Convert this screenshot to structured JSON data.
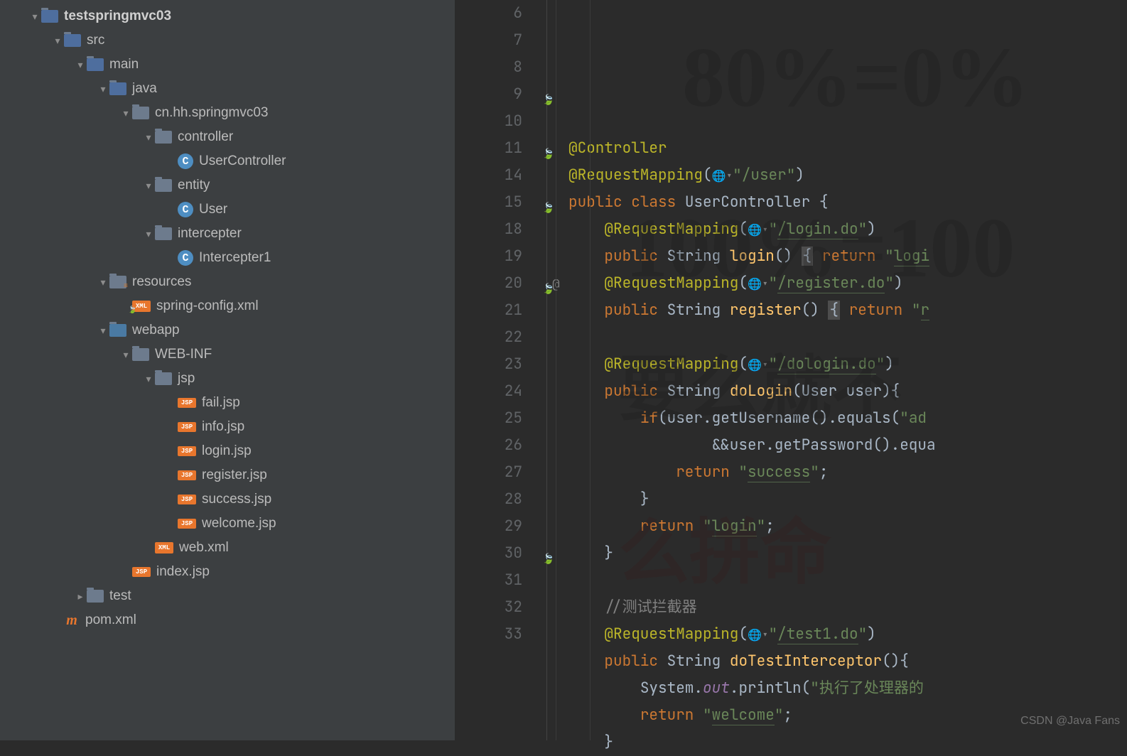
{
  "tree": [
    {
      "d": 40,
      "a": "open",
      "i": "folder",
      "v": "src",
      "lbl": "testspringmvc03",
      "bold": true
    },
    {
      "d": 72,
      "a": "open",
      "i": "folder",
      "v": "src",
      "lbl": "src"
    },
    {
      "d": 104,
      "a": "open",
      "i": "folder",
      "v": "src",
      "lbl": "main"
    },
    {
      "d": 136,
      "a": "open",
      "i": "folder",
      "v": "src",
      "lbl": "java"
    },
    {
      "d": 168,
      "a": "open",
      "i": "folder",
      "lbl": "cn.hh.springmvc03"
    },
    {
      "d": 200,
      "a": "open",
      "i": "folder",
      "lbl": "controller"
    },
    {
      "d": 232,
      "a": "none",
      "i": "class",
      "it": "C",
      "lbl": "UserController"
    },
    {
      "d": 200,
      "a": "open",
      "i": "folder",
      "lbl": "entity"
    },
    {
      "d": 232,
      "a": "none",
      "i": "class",
      "it": "C",
      "lbl": "User"
    },
    {
      "d": 200,
      "a": "open",
      "i": "folder",
      "lbl": "intercepter"
    },
    {
      "d": 232,
      "a": "none",
      "i": "class",
      "it": "C",
      "lbl": "Intercepter1"
    },
    {
      "d": 136,
      "a": "open",
      "i": "folder",
      "v": "res",
      "lbl": "resources"
    },
    {
      "d": 168,
      "a": "none",
      "i": "xml",
      "v": "spring",
      "it": "XML",
      "lbl": "spring-config.xml"
    },
    {
      "d": 136,
      "a": "open",
      "i": "folder",
      "v": "web",
      "lbl": "webapp"
    },
    {
      "d": 168,
      "a": "open",
      "i": "folder",
      "lbl": "WEB-INF"
    },
    {
      "d": 200,
      "a": "open",
      "i": "folder",
      "lbl": "jsp"
    },
    {
      "d": 232,
      "a": "none",
      "i": "jsp",
      "it": "JSP",
      "lbl": "fail.jsp"
    },
    {
      "d": 232,
      "a": "none",
      "i": "jsp",
      "it": "JSP",
      "lbl": "info.jsp"
    },
    {
      "d": 232,
      "a": "none",
      "i": "jsp",
      "it": "JSP",
      "lbl": "login.jsp"
    },
    {
      "d": 232,
      "a": "none",
      "i": "jsp",
      "it": "JSP",
      "lbl": "register.jsp"
    },
    {
      "d": 232,
      "a": "none",
      "i": "jsp",
      "it": "JSP",
      "lbl": "success.jsp"
    },
    {
      "d": 232,
      "a": "none",
      "i": "jsp",
      "it": "JSP",
      "lbl": "welcome.jsp"
    },
    {
      "d": 200,
      "a": "none",
      "i": "xml",
      "it": "XML",
      "lbl": "web.xml"
    },
    {
      "d": 168,
      "a": "none",
      "i": "jsp",
      "it": "JSP",
      "lbl": "index.jsp"
    },
    {
      "d": 104,
      "a": "closed",
      "i": "folder",
      "lbl": "test"
    },
    {
      "d": 72,
      "a": "none",
      "i": "pom",
      "it": "m",
      "lbl": "pom.xml"
    }
  ],
  "lines": [
    6,
    7,
    8,
    9,
    10,
    11,
    14,
    15,
    18,
    19,
    20,
    21,
    22,
    23,
    24,
    25,
    26,
    27,
    28,
    29,
    30,
    31,
    32,
    33
  ],
  "gutterIcons": {
    "3": "spring",
    "5": "spring",
    "7": "spring",
    "10": "spring",
    "10at": true,
    "20": "spring"
  },
  "code": [
    {
      "n": 6,
      "html": ""
    },
    {
      "n": 7,
      "html": "<span class='ann'>@Controller</span>"
    },
    {
      "n": 8,
      "html": "<span class='ann'>@RequestMapping</span><span class='pun'>(</span><span class='globe'>🌐▾</span><span class='str'>\"/user\"</span><span class='pun'>)</span>"
    },
    {
      "n": 9,
      "html": "<span class='kw'>public</span> <span class='kw'>class</span> <span class='cls'>UserController</span> <span class='pun'>{</span>"
    },
    {
      "n": 10,
      "html": "    <span class='ann'>@RequestMapping</span><span class='pun'>(</span><span class='globe'>🌐▾</span><span class='str'>\"</span><span class='str u'>/login.do</span><span class='str'>\"</span><span class='pun'>)</span>"
    },
    {
      "n": 11,
      "html": "    <span class='kw'>public</span> <span class='cls'>String</span> <span class='mth'>login</span><span class='pun'>()</span> <span class='hilite'><span class='pun'>{</span></span> <span class='kw'>return</span> <span class='str'>\"</span><span class='str u'>logi</span>"
    },
    {
      "n": 14,
      "html": "    <span class='ann'>@RequestMapping</span><span class='pun'>(</span><span class='globe'>🌐▾</span><span class='str'>\"</span><span class='str u'>/register.do</span><span class='str'>\"</span><span class='pun'>)</span>"
    },
    {
      "n": 15,
      "html": "    <span class='kw'>public</span> <span class='cls'>String</span> <span class='mth'>register</span><span class='pun'>()</span> <span class='hilite'><span class='pun'>{</span></span> <span class='kw'>return</span> <span class='str'>\"</span><span class='str u'>r</span>"
    },
    {
      "n": 18,
      "html": ""
    },
    {
      "n": 19,
      "html": "    <span class='ann'>@RequestMapping</span><span class='pun'>(</span><span class='globe'>🌐▾</span><span class='str'>\"</span><span class='str u'>/dologin.do</span><span class='str'>\"</span><span class='pun'>)</span>"
    },
    {
      "n": 20,
      "html": "    <span class='kw'>public</span> <span class='cls'>String</span> <span class='mth'>doLogin</span><span class='pun'>(</span><span class='cls'>User</span> <span class='pun'>user){</span>"
    },
    {
      "n": 21,
      "html": "        <span class='kw'>if</span><span class='pun'>(user.getUsername().equals(</span><span class='str'>\"ad</span>"
    },
    {
      "n": 22,
      "html": "                <span class='pun'>&&user.getPassword().equa</span>"
    },
    {
      "n": 23,
      "html": "            <span class='kw'>return</span> <span class='str'>\"</span><span class='str u'>success</span><span class='str'>\"</span><span class='pun'>;</span>"
    },
    {
      "n": 24,
      "html": "        <span class='pun'>}</span>"
    },
    {
      "n": 25,
      "html": "        <span class='kw'>return</span> <span class='str'>\"</span><span class='str u'>login</span><span class='str'>\"</span><span class='pun'>;</span>"
    },
    {
      "n": 26,
      "html": "    <span class='pun'>}</span>"
    },
    {
      "n": 27,
      "html": ""
    },
    {
      "n": 28,
      "html": "    <span class='cmt'>//测试拦截器</span>"
    },
    {
      "n": 29,
      "html": "    <span class='ann'>@RequestMapping</span><span class='pun'>(</span><span class='globe'>🌐▾</span><span class='str'>\"</span><span class='str u'>/test1.do</span><span class='str'>\"</span><span class='pun'>)</span>"
    },
    {
      "n": 30,
      "html": "    <span class='kw'>public</span> <span class='cls'>String</span> <span class='mth'>doTestInterceptor</span><span class='pun'>(){</span>"
    },
    {
      "n": 31,
      "html": "        <span class='cls'>System</span><span class='pun'>.</span><span class='fld'>out</span><span class='pun'>.println(</span><span class='str'>\"执行了处理器的</span>"
    },
    {
      "n": 32,
      "html": "        <span class='kw'>return</span> <span class='str'>\"</span><span class='str u'>welcome</span><span class='str'>\"</span><span class='pun'>;</span>"
    },
    {
      "n": 33,
      "html": "    <span class='pun'>}</span>"
    }
  ],
  "watermarks": {
    "wm1": "80%=0%",
    "wm2": "100%=100",
    "wm3": "要么就不",
    "wm4": "么拼命"
  },
  "csdn": "CSDN @Java Fans"
}
